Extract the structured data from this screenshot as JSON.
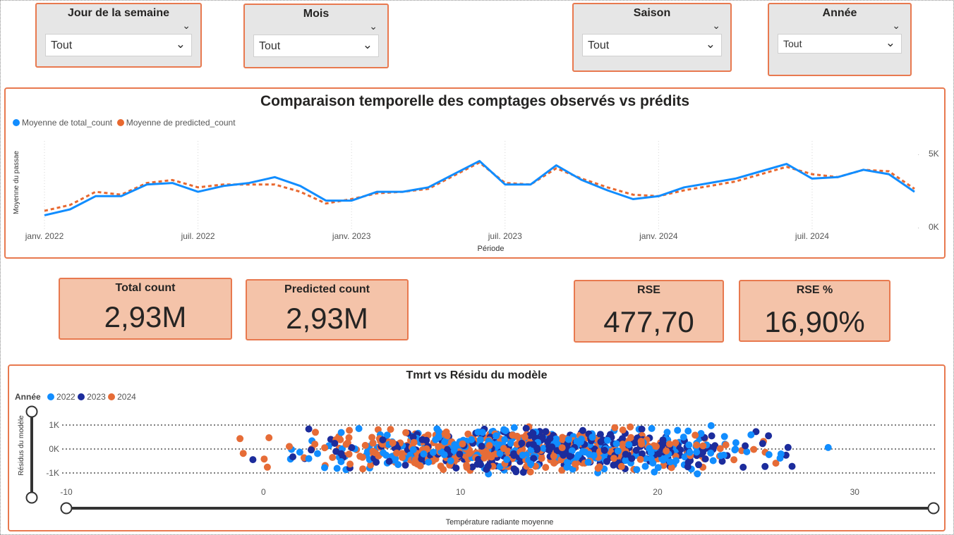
{
  "slicers": [
    {
      "title": "Jour de la semaine",
      "value": "Tout"
    },
    {
      "title": "Mois",
      "value": "Tout"
    },
    {
      "title": "Saison",
      "value": "Tout"
    },
    {
      "title": "Année",
      "value": "Tout"
    }
  ],
  "colors": {
    "border_accent": "#e8794f",
    "series_total": "#118dff",
    "series_predicted": "#e8682f",
    "year_2022": "#118dff",
    "year_2023": "#1c2c9c",
    "year_2024": "#e66c37",
    "kpi_bg": "#f4c3a9"
  },
  "kpis": [
    {
      "label": "Total count",
      "value": "2,93M"
    },
    {
      "label": "Predicted count",
      "value": "2,93M"
    },
    {
      "label": "RSE",
      "value": "477,70"
    },
    {
      "label": "RSE %",
      "value": "16,90%"
    }
  ],
  "chart_data": [
    {
      "type": "line",
      "title": "Comparaison temporelle des comptages observés vs prédits",
      "xlabel": "Période",
      "ylabel": "Moyenne du passae",
      "x": [
        "2022-01",
        "2022-02",
        "2022-03",
        "2022-04",
        "2022-05",
        "2022-06",
        "2022-07",
        "2022-08",
        "2022-09",
        "2022-10",
        "2022-11",
        "2022-12",
        "2023-01",
        "2023-02",
        "2023-03",
        "2023-04",
        "2023-05",
        "2023-06",
        "2023-07",
        "2023-08",
        "2023-09",
        "2023-10",
        "2023-11",
        "2023-12",
        "2024-01",
        "2024-02",
        "2024-03",
        "2024-04",
        "2024-05",
        "2024-06",
        "2024-07",
        "2024-08",
        "2024-09",
        "2024-10",
        "2024-11"
      ],
      "x_ticks": [
        "janv. 2022",
        "juil. 2022",
        "janv. 2023",
        "juil. 2023",
        "janv. 2024",
        "juil. 2024"
      ],
      "y_ticks": [
        "5K",
        "0K"
      ],
      "ylim": [
        0,
        5000
      ],
      "grid": false,
      "legend_position": "top-left",
      "series": [
        {
          "name": "Moyenne de total_count",
          "style": "solid",
          "values": [
            800,
            1200,
            2100,
            2100,
            2900,
            3000,
            2400,
            2800,
            3000,
            3400,
            2800,
            1800,
            1800,
            2400,
            2400,
            2700,
            3600,
            4500,
            2900,
            2900,
            4200,
            3200,
            2500,
            1900,
            2100,
            2700,
            3000,
            3300,
            3800,
            4300,
            3300,
            3400,
            3900,
            3600,
            2400
          ]
        },
        {
          "name": "Moyenne de predicted_count",
          "style": "dashed",
          "values": [
            1100,
            1500,
            2400,
            2200,
            3000,
            3200,
            2700,
            2900,
            2900,
            2900,
            2400,
            1600,
            1900,
            2300,
            2400,
            2600,
            3500,
            4400,
            3000,
            2900,
            4000,
            3300,
            2700,
            2200,
            2100,
            2500,
            2800,
            3100,
            3600,
            4100,
            3600,
            3400,
            3900,
            3800,
            2600
          ]
        }
      ]
    },
    {
      "type": "scatter",
      "title": "Tmrt vs Résidu du modèle",
      "xlabel": "Température radiante moyenne",
      "ylabel": "Résidus du modèle",
      "legend_title": "Année",
      "xlim": [
        -10,
        34
      ],
      "x_ticks": [
        -10,
        0,
        10,
        20,
        30
      ],
      "ylim": [
        -1.45,
        1.15
      ],
      "y_tick_labels": [
        "1K",
        "0K",
        "-1K"
      ],
      "y_tick_values": [
        1,
        0,
        -1
      ],
      "grid": "dotted horizontal",
      "series": [
        {
          "name": "2022",
          "x_range": [
            -5,
            32
          ],
          "y_spread": 1.05,
          "n": 300
        },
        {
          "name": "2023",
          "x_range": [
            -2,
            31
          ],
          "y_spread": 1.0,
          "n": 300
        },
        {
          "name": "2024",
          "x_range": [
            -6,
            31
          ],
          "y_spread": 1.05,
          "n": 330
        }
      ]
    }
  ]
}
